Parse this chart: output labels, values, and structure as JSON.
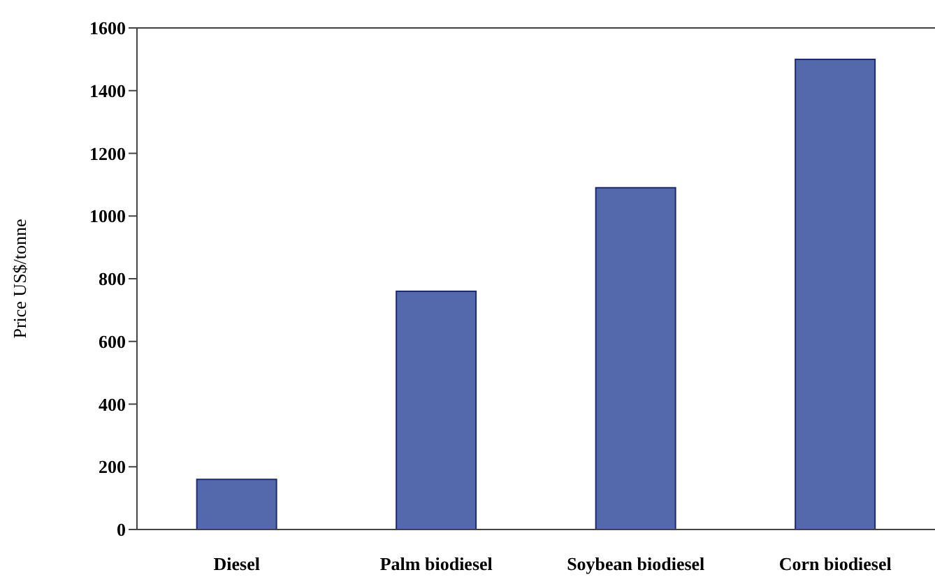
{
  "chart_data": {
    "type": "bar",
    "ylabel": "Price US$/tonne",
    "categories": [
      "Diesel",
      "Palm biodiesel",
      "Soybean biodiesel",
      "Corn biodiesel"
    ],
    "values": [
      160,
      760,
      1090,
      1500
    ],
    "color": "#5468ac",
    "ylim": [
      0,
      1600
    ],
    "yticks": [
      0,
      200,
      400,
      600,
      800,
      1000,
      1200,
      1400,
      1600
    ],
    "grid": false,
    "legend": false
  }
}
